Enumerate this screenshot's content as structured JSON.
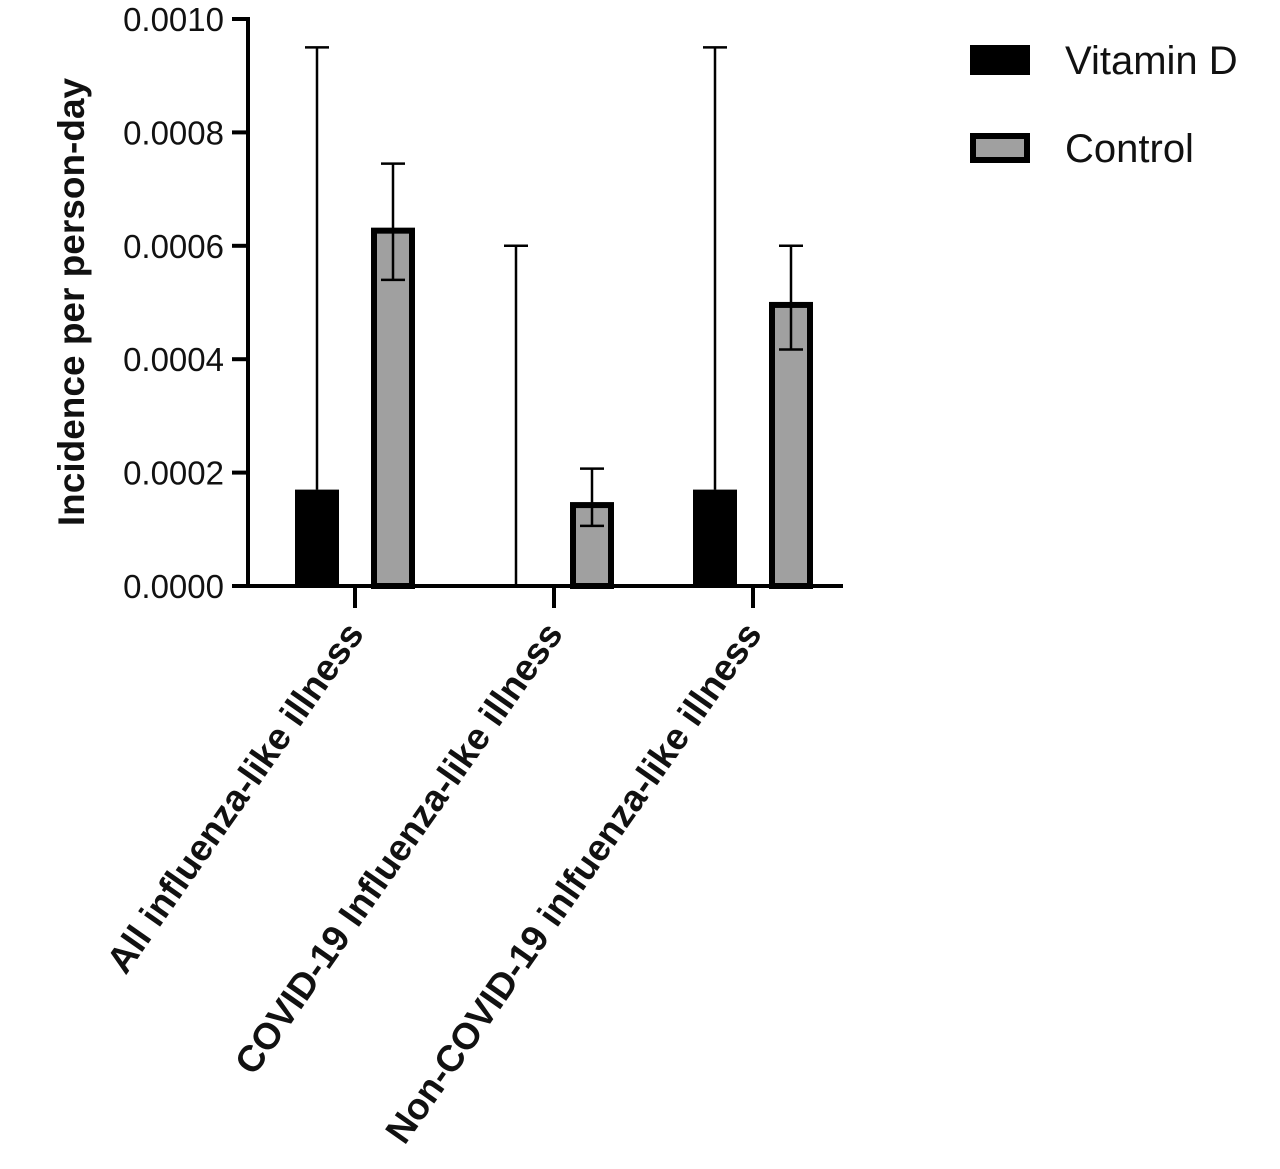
{
  "chart_data": {
    "type": "bar",
    "title": "",
    "xlabel": "",
    "ylabel": "Incidence per person-day",
    "ylim": [
      0,
      0.001
    ],
    "yticks": [
      "0.0000",
      "0.0002",
      "0.0004",
      "0.0006",
      "0.0008",
      "0.0010"
    ],
    "ytick_values": [
      0,
      0.0002,
      0.0004,
      0.0006,
      0.0008,
      0.001
    ],
    "grid": false,
    "legend_position": "top-right",
    "categories": [
      "All influenza-like illness",
      "COVID-19 Influenza-like illness",
      "Non-COVID-19 inlfuenza-like illness"
    ],
    "series": [
      {
        "name": "Vitamin D",
        "color": "#000000",
        "values": [
          0.00017,
          0,
          0.00017
        ],
        "error_low": [
          0.00017,
          0,
          0.00017
        ],
        "error_high": [
          0.00095,
          0.0006,
          0.00095
        ]
      },
      {
        "name": "Control",
        "color": "#a0a0a0",
        "values": [
          0.000632,
          0.000148,
          0.000501
        ],
        "error_low": [
          0.00054,
          0.000106,
          0.000417
        ],
        "error_high": [
          0.000745,
          0.000207,
          0.0006
        ]
      }
    ]
  }
}
